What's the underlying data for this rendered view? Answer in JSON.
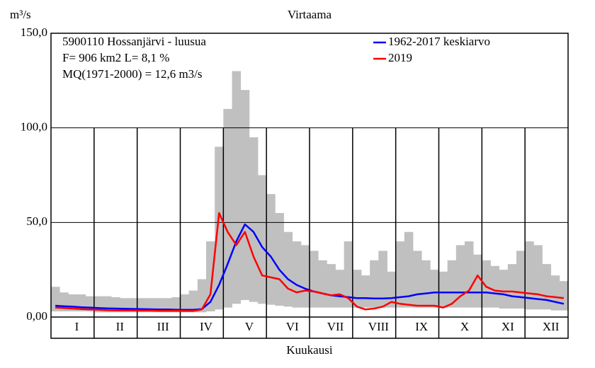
{
  "chart_data": {
    "type": "line",
    "title": "Virtaama",
    "y_label": "m³/s",
    "x_label": "Kuukausi",
    "annotations": [
      "5900110 Hossanjärvi - luusua",
      "F=    906 km2 L=  8,1 %",
      "MQ(1971-2000) = 12,6 m3/s"
    ],
    "categories": [
      null,
      null,
      "I",
      null,
      null,
      null,
      null,
      "II",
      null,
      null,
      null,
      null,
      "III",
      null,
      null,
      null,
      null,
      "IV",
      null,
      null,
      null,
      null,
      "V",
      null,
      null,
      null,
      null,
      "VI",
      null,
      null,
      null,
      null,
      "VII",
      null,
      null,
      null,
      null,
      "VIII",
      null,
      null,
      null,
      null,
      "IX",
      null,
      null,
      null,
      null,
      "X",
      null,
      null,
      null,
      null,
      "XI",
      null,
      null,
      null,
      null,
      "XII",
      null,
      null
    ],
    "band": {
      "color": "#c0c0c0",
      "max": [
        16,
        13,
        12,
        12,
        11,
        11,
        11,
        10.5,
        10,
        10,
        10,
        10,
        10,
        10,
        10.5,
        12,
        14,
        20,
        40,
        90,
        110,
        130,
        120,
        95,
        75,
        65,
        55,
        45,
        40,
        38,
        35,
        30,
        28,
        25,
        40,
        25,
        22,
        30,
        35,
        24,
        40,
        45,
        35,
        30,
        25,
        24,
        30,
        38,
        40,
        33,
        30,
        27,
        25,
        28,
        35,
        40,
        38,
        28,
        22,
        19
      ],
      "min": [
        3,
        3,
        3,
        3,
        3,
        2.5,
        2.5,
        2.5,
        2.5,
        2.5,
        2.5,
        2.5,
        2.5,
        2.5,
        2.5,
        2.5,
        2.5,
        2.5,
        3,
        4,
        5,
        7,
        9,
        8,
        7,
        6.5,
        6,
        5.5,
        5,
        5,
        5,
        5,
        5,
        5,
        5,
        5,
        5,
        5,
        5,
        5,
        5,
        5,
        5,
        5,
        5,
        5,
        5,
        5,
        5,
        5,
        5,
        5,
        4.5,
        4.5,
        4.5,
        4,
        4,
        4,
        3.5,
        3.5
      ]
    },
    "series": [
      {
        "name": "1962-2017 keskiarvo",
        "color": "#0000ff",
        "values": [
          6,
          5.7,
          5.5,
          5.2,
          5,
          4.8,
          4.6,
          4.5,
          4.4,
          4.3,
          4.2,
          4.1,
          4,
          4,
          3.9,
          3.8,
          3.8,
          4.2,
          8,
          17,
          28,
          40,
          49,
          45,
          37,
          32,
          25,
          20,
          17,
          15,
          13.5,
          12.5,
          11.5,
          11,
          10.5,
          10,
          10,
          9.8,
          9.8,
          10,
          10.5,
          11,
          12,
          12.5,
          13,
          13,
          13,
          13,
          13,
          13,
          13,
          12.5,
          12,
          11,
          10.5,
          10,
          9.5,
          9,
          8,
          7
        ]
      },
      {
        "name": "2019",
        "color": "#ff0000",
        "values": [
          5,
          4.8,
          4.5,
          4.2,
          4,
          3.8,
          3.6,
          3.5,
          3.5,
          3.5,
          3.4,
          3.4,
          3.3,
          3.3,
          3.3,
          3.2,
          3.2,
          4,
          12,
          55,
          45,
          38,
          45,
          32,
          22,
          21,
          20,
          15,
          13,
          14,
          13.5,
          12.5,
          11.5,
          12,
          10,
          5.5,
          4,
          4.5,
          5.5,
          8,
          7,
          6.5,
          6,
          6,
          6,
          5,
          7,
          11,
          14,
          22,
          16,
          14,
          13.5,
          13.5,
          13,
          12.5,
          12,
          11,
          10.5,
          10
        ]
      }
    ],
    "ylim": [
      0,
      150
    ],
    "yticks": [
      {
        "value": 0,
        "label": "0,00"
      },
      {
        "value": 50,
        "label": "50,0"
      },
      {
        "value": 100,
        "label": "100,0"
      },
      {
        "value": 150,
        "label": "150,0"
      }
    ],
    "grid": true
  }
}
